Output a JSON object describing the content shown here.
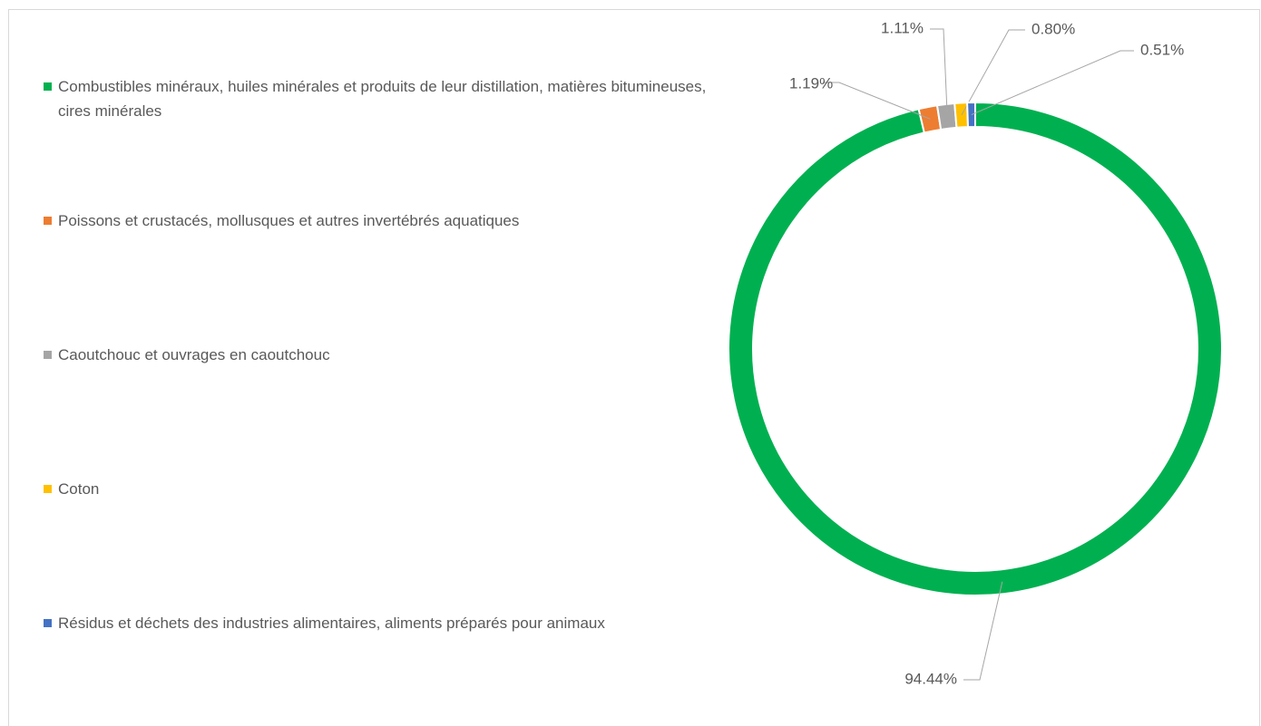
{
  "chart_data": {
    "type": "donut",
    "categories": [
      "Combustibles minéraux, huiles minérales et produits de leur distillation, matières bitumineuses, cires minérales",
      "Poissons et crustacés, mollusques et autres invertébrés aquatiques",
      "Caoutchouc et ouvrages en caoutchouc",
      "Coton",
      "Résidus et déchets des industries alimentaires, aliments préparés pour animaux"
    ],
    "values": [
      94.44,
      1.19,
      1.11,
      0.8,
      0.51
    ],
    "value_labels": [
      "94.44%",
      "1.19%",
      "1.11%",
      "0.80%",
      "0.51%"
    ],
    "colors": [
      "#00b050",
      "#ed7d31",
      "#a5a5a5",
      "#ffc000",
      "#4472c4"
    ],
    "legend": "left"
  }
}
